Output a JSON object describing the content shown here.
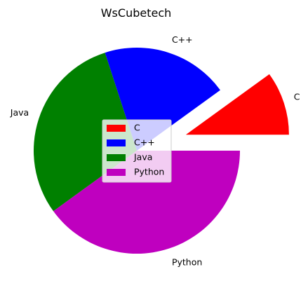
{
  "chart_data": {
    "type": "pie",
    "title": "WsCubetech",
    "categories": [
      "C",
      "C++",
      "Java",
      "Python"
    ],
    "values": [
      10,
      20,
      30,
      40
    ],
    "colors": [
      "#ff0000",
      "#0000ff",
      "#008000",
      "#bf00bf"
    ],
    "explode": [
      0.5,
      0,
      0,
      0
    ],
    "start_angle_deg": 0,
    "direction": "counterclockwise",
    "legend": {
      "placement": "center",
      "entries": [
        "C",
        "C++",
        "Java",
        "Python"
      ]
    }
  }
}
